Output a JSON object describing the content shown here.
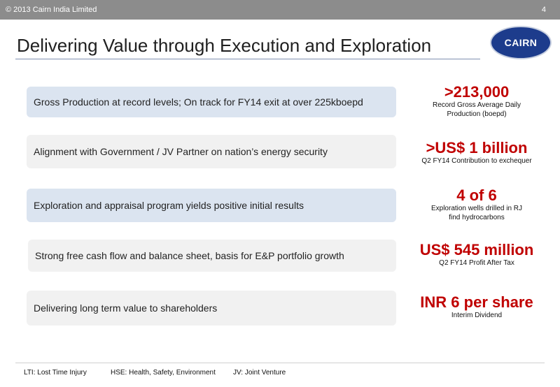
{
  "header": {
    "copyright": "© 2013 Cairn India Limited",
    "page_number": "4"
  },
  "title": "Delivering Value through Execution and Exploration",
  "logo_text": "CAIRN",
  "rows": [
    {
      "text": "Gross Production at record  levels; On track for FY14 exit at over 225kboepd",
      "stat": ">213,000",
      "caption_lines": [
        "Record Gross Average Daily",
        "Production (boepd)"
      ]
    },
    {
      "text": "Alignment with Government / JV Partner on nation’s energy security",
      "stat": ">US$ 1 billion",
      "caption_lines": [
        "Q2 FY14 Contribution to exchequer"
      ]
    },
    {
      "text": "Exploration and appraisal program yields positive initial results",
      "stat": "4 of 6",
      "caption_lines": [
        "Exploration wells drilled in RJ",
        "find hydrocarbons"
      ]
    },
    {
      "text": "Strong free cash flow and balance sheet, basis for E&P portfolio growth",
      "stat": "US$ 545 million",
      "caption_lines": [
        "Q2 FY14 Profit After Tax"
      ]
    },
    {
      "text": "Delivering long term value to shareholders",
      "stat": "INR 6 per share",
      "caption_lines": [
        "Interim Dividend"
      ]
    }
  ],
  "footnotes": [
    "LTI: Lost Time Injury",
    "HSE: Health, Safety, Environment",
    "JV: Joint Venture"
  ],
  "colors": {
    "accent_red": "#c00000",
    "box_blue": "#dbe4f0",
    "box_gray": "#f1f1f1",
    "logo_blue": "#1d3c8c",
    "topbar": "#8c8c8c"
  }
}
